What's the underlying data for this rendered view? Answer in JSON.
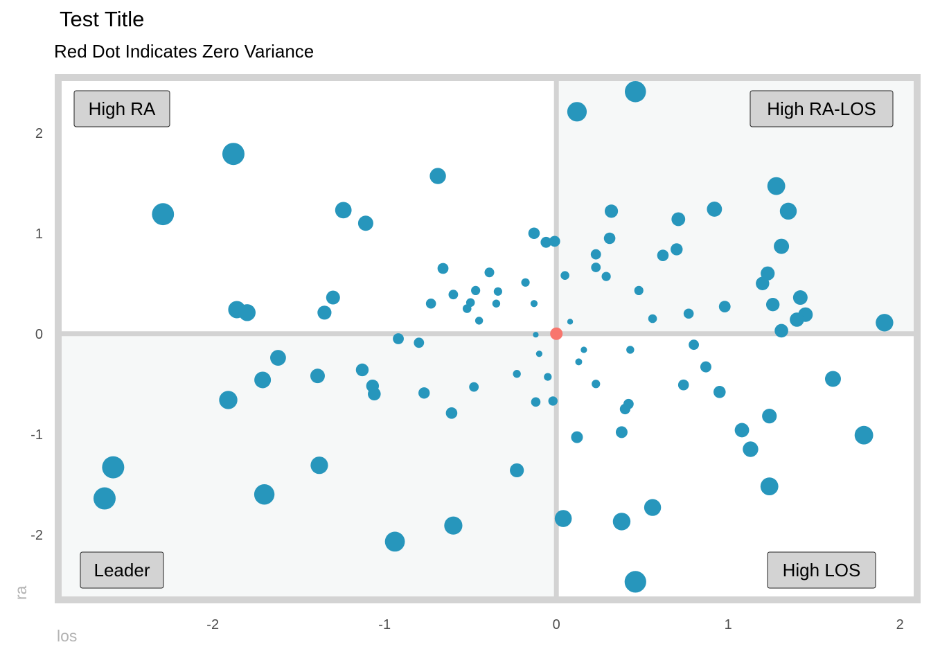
{
  "title": "Test Title",
  "subtitle": "Red Dot Indicates Zero Variance",
  "colors": {
    "point": "#2796bc",
    "zero_point": "#f8766d",
    "panel_border": "#d3d3d3",
    "quadrant_shade": "#f6f8f8",
    "label_fill": "#d3d3d3"
  },
  "chart_data": {
    "type": "scatter",
    "xlabel": "los",
    "ylabel": "ra",
    "xlim": [
      -2.9,
      2.1
    ],
    "ylim": [
      -2.65,
      2.55
    ],
    "x_ticks": [
      -2,
      -1,
      0,
      1,
      2
    ],
    "y_ticks": [
      -2,
      -1,
      0,
      1,
      2
    ],
    "x_tick_labels": [
      "-2",
      "-1",
      "0",
      "1",
      "2"
    ],
    "y_tick_labels": [
      "-2",
      "-1",
      "0",
      "1",
      "2"
    ],
    "quadrant_labels": {
      "top_left": "High RA",
      "top_right": "High RA-LOS",
      "bottom_left": "Leader",
      "bottom_right": "High LOS"
    },
    "zero_point": {
      "x": 0,
      "y": 0
    },
    "points": [
      {
        "x": 0.46,
        "y": 2.41
      },
      {
        "x": 0.12,
        "y": 2.21
      },
      {
        "x": -1.88,
        "y": 1.79
      },
      {
        "x": -0.69,
        "y": 1.57
      },
      {
        "x": -2.29,
        "y": 1.19
      },
      {
        "x": -1.24,
        "y": 1.23
      },
      {
        "x": -1.11,
        "y": 1.1
      },
      {
        "x": 1.28,
        "y": 1.47
      },
      {
        "x": 1.35,
        "y": 1.22
      },
      {
        "x": 0.92,
        "y": 1.24
      },
      {
        "x": 0.32,
        "y": 1.22
      },
      {
        "x": 0.71,
        "y": 1.14
      },
      {
        "x": -0.13,
        "y": 1.0
      },
      {
        "x": -0.06,
        "y": 0.91
      },
      {
        "x": -0.01,
        "y": 0.92
      },
      {
        "x": 0.31,
        "y": 0.95
      },
      {
        "x": 1.31,
        "y": 0.87
      },
      {
        "x": 0.23,
        "y": 0.79
      },
      {
        "x": 0.62,
        "y": 0.78
      },
      {
        "x": 0.7,
        "y": 0.84
      },
      {
        "x": -0.66,
        "y": 0.65
      },
      {
        "x": -0.39,
        "y": 0.61
      },
      {
        "x": 0.23,
        "y": 0.66
      },
      {
        "x": 0.29,
        "y": 0.57
      },
      {
        "x": 0.05,
        "y": 0.58
      },
      {
        "x": -0.18,
        "y": 0.51
      },
      {
        "x": 1.23,
        "y": 0.6
      },
      {
        "x": 1.2,
        "y": 0.5
      },
      {
        "x": 0.48,
        "y": 0.43
      },
      {
        "x": -0.47,
        "y": 0.43
      },
      {
        "x": -0.34,
        "y": 0.42
      },
      {
        "x": -0.6,
        "y": 0.39
      },
      {
        "x": -1.3,
        "y": 0.36
      },
      {
        "x": -0.73,
        "y": 0.3
      },
      {
        "x": -0.5,
        "y": 0.31
      },
      {
        "x": -0.35,
        "y": 0.3
      },
      {
        "x": -0.52,
        "y": 0.25
      },
      {
        "x": -0.13,
        "y": 0.3
      },
      {
        "x": 1.42,
        "y": 0.36
      },
      {
        "x": 1.26,
        "y": 0.29
      },
      {
        "x": 0.98,
        "y": 0.27
      },
      {
        "x": 1.45,
        "y": 0.19
      },
      {
        "x": 1.4,
        "y": 0.14
      },
      {
        "x": -1.86,
        "y": 0.24
      },
      {
        "x": -1.8,
        "y": 0.21
      },
      {
        "x": -1.35,
        "y": 0.21
      },
      {
        "x": -0.45,
        "y": 0.13
      },
      {
        "x": 0.77,
        "y": 0.2
      },
      {
        "x": 0.56,
        "y": 0.15
      },
      {
        "x": 0.08,
        "y": 0.12
      },
      {
        "x": 1.91,
        "y": 0.11
      },
      {
        "x": 1.31,
        "y": 0.03
      },
      {
        "x": -0.12,
        "y": -0.01
      },
      {
        "x": -0.92,
        "y": -0.05
      },
      {
        "x": -0.8,
        "y": -0.09
      },
      {
        "x": 0.8,
        "y": -0.11
      },
      {
        "x": 0.43,
        "y": -0.16
      },
      {
        "x": 0.16,
        "y": -0.16
      },
      {
        "x": -0.1,
        "y": -0.2
      },
      {
        "x": 0.13,
        "y": -0.28
      },
      {
        "x": -1.62,
        "y": -0.24
      },
      {
        "x": 0.87,
        "y": -0.33
      },
      {
        "x": -1.13,
        "y": -0.36
      },
      {
        "x": -0.23,
        "y": -0.4
      },
      {
        "x": -0.05,
        "y": -0.43
      },
      {
        "x": -1.39,
        "y": -0.42
      },
      {
        "x": 1.61,
        "y": -0.45
      },
      {
        "x": -1.71,
        "y": -0.46
      },
      {
        "x": 0.23,
        "y": -0.5
      },
      {
        "x": 0.74,
        "y": -0.51
      },
      {
        "x": -1.07,
        "y": -0.52
      },
      {
        "x": -0.48,
        "y": -0.53
      },
      {
        "x": -1.06,
        "y": -0.6
      },
      {
        "x": -0.77,
        "y": -0.59
      },
      {
        "x": 0.95,
        "y": -0.58
      },
      {
        "x": -1.91,
        "y": -0.66
      },
      {
        "x": -0.12,
        "y": -0.68
      },
      {
        "x": -0.02,
        "y": -0.67
      },
      {
        "x": 0.42,
        "y": -0.7
      },
      {
        "x": 0.4,
        "y": -0.75
      },
      {
        "x": -0.61,
        "y": -0.79
      },
      {
        "x": 1.24,
        "y": -0.82
      },
      {
        "x": 1.08,
        "y": -0.96
      },
      {
        "x": 0.38,
        "y": -0.98
      },
      {
        "x": 0.12,
        "y": -1.03
      },
      {
        "x": 1.79,
        "y": -1.01
      },
      {
        "x": 1.13,
        "y": -1.15
      },
      {
        "x": -2.58,
        "y": -1.33
      },
      {
        "x": -1.38,
        "y": -1.31
      },
      {
        "x": -0.23,
        "y": -1.36
      },
      {
        "x": 1.24,
        "y": -1.52
      },
      {
        "x": -1.7,
        "y": -1.6
      },
      {
        "x": -2.63,
        "y": -1.64
      },
      {
        "x": 0.56,
        "y": -1.73
      },
      {
        "x": 0.04,
        "y": -1.84
      },
      {
        "x": 0.38,
        "y": -1.87
      },
      {
        "x": -0.6,
        "y": -1.91
      },
      {
        "x": -0.94,
        "y": -2.07
      },
      {
        "x": 0.46,
        "y": -2.47
      }
    ]
  }
}
